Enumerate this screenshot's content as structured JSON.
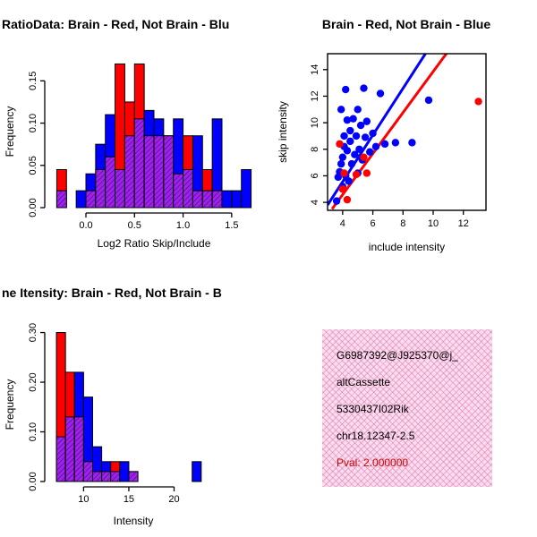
{
  "colors": {
    "red": "#FF0000",
    "blue": "#0000FF",
    "overlap": "#A020F0",
    "info_bg": "#FBDCEC",
    "pval": "#CC0000"
  },
  "info_box": {
    "lines": [
      "G6987392@J925370@j_",
      "altCassette",
      "5330437I02Rik",
      "chr18.12347-2.5"
    ],
    "pval_line": "Pval: 2.000000"
  },
  "chart_data": [
    {
      "id": "hist-ratio",
      "type": "histogram",
      "title": "RatioData: Brain - Red, Not Brain - Blu",
      "xlabel": "Log2 Ratio Skip/Include",
      "ylabel": "Frequency",
      "xlim": [
        -0.35,
        1.75
      ],
      "ylim": [
        0,
        0.18
      ],
      "xticks": [
        0,
        0.5,
        1.0,
        1.5
      ],
      "xtick_labels": [
        "0.0",
        "0.5",
        "1.0",
        "1.5"
      ],
      "yticks": [
        0,
        0.05,
        0.1,
        0.15
      ],
      "ytick_labels": [
        "0.00",
        "0.05",
        "0.10",
        "0.15"
      ],
      "bin_start": -0.3,
      "bin_width": 0.1,
      "series": [
        {
          "name": "Brain",
          "color": "#FF0000",
          "values": [
            0.045,
            0,
            0,
            0.02,
            0.045,
            0.06,
            0.17,
            0.125,
            0.17,
            0.085,
            0.085,
            0.085,
            0.04,
            0.085,
            0.02,
            0.045,
            0.02,
            0,
            0,
            0
          ]
        },
        {
          "name": "Not Brain",
          "color": "#0000FF",
          "values": [
            0.02,
            0,
            0.02,
            0.04,
            0.075,
            0.11,
            0.045,
            0.085,
            0.105,
            0.115,
            0.105,
            0.085,
            0.105,
            0.045,
            0.085,
            0.02,
            0.105,
            0.02,
            0.02,
            0.045
          ]
        }
      ]
    },
    {
      "id": "scatter-intensity",
      "type": "scatter",
      "title": "Brain - Red, Not Brain - Blue",
      "xlabel": "include intensity",
      "ylabel": "skip intensity",
      "xlim": [
        3,
        13.5
      ],
      "ylim": [
        3.4,
        15.2
      ],
      "xticks": [
        4,
        6,
        8,
        10,
        12
      ],
      "yticks": [
        4,
        6,
        8,
        10,
        12,
        14
      ],
      "series": [
        {
          "name": "Not Brain",
          "color": "#0000FF",
          "points": [
            [
              3.6,
              4.1
            ],
            [
              3.7,
              5.9
            ],
            [
              3.8,
              6.3
            ],
            [
              3.9,
              6.9
            ],
            [
              3.9,
              11.0
            ],
            [
              4.0,
              5.2
            ],
            [
              4.0,
              7.4
            ],
            [
              4.1,
              8.2
            ],
            [
              4.1,
              9.0
            ],
            [
              4.2,
              6.0
            ],
            [
              4.2,
              12.5
            ],
            [
              4.3,
              7.9
            ],
            [
              4.3,
              10.2
            ],
            [
              4.4,
              5.6
            ],
            [
              4.5,
              8.6
            ],
            [
              4.5,
              9.4
            ],
            [
              4.6,
              6.9
            ],
            [
              4.7,
              10.3
            ],
            [
              4.8,
              7.6
            ],
            [
              4.9,
              9.0
            ],
            [
              5.0,
              6.2
            ],
            [
              5.0,
              11.0
            ],
            [
              5.1,
              8.0
            ],
            [
              5.2,
              9.8
            ],
            [
              5.3,
              7.2
            ],
            [
              5.4,
              12.6
            ],
            [
              5.5,
              8.9
            ],
            [
              5.6,
              10.1
            ],
            [
              5.8,
              7.8
            ],
            [
              6.0,
              9.2
            ],
            [
              6.2,
              8.2
            ],
            [
              6.5,
              12.2
            ],
            [
              6.8,
              8.4
            ],
            [
              7.5,
              8.5
            ],
            [
              8.6,
              8.5
            ],
            [
              9.7,
              11.7
            ]
          ]
        },
        {
          "name": "Brain",
          "color": "#FF0000",
          "points": [
            [
              3.8,
              8.4
            ],
            [
              4.0,
              5.0
            ],
            [
              4.1,
              6.2
            ],
            [
              4.3,
              4.2
            ],
            [
              4.9,
              6.1
            ],
            [
              5.4,
              7.4
            ],
            [
              5.6,
              6.2
            ],
            [
              13.0,
              11.6
            ]
          ]
        }
      ],
      "fit_lines": [
        {
          "color": "#0000FF",
          "p1": [
            3.0,
            3.8
          ],
          "p2": [
            9.6,
            15.4
          ]
        },
        {
          "color": "#FF0000",
          "p1": [
            3.3,
            3.5
          ],
          "p2": [
            11.0,
            15.4
          ]
        }
      ]
    },
    {
      "id": "hist-intensity",
      "type": "histogram",
      "title": "ne Itensity: Brain - Red, Not Brain - B",
      "xlabel": "Intensity",
      "ylabel": "Frequency",
      "xlim": [
        6.5,
        24.5
      ],
      "ylim": [
        0,
        0.31
      ],
      "xticks": [
        10,
        15,
        20
      ],
      "xtick_labels": [
        "10",
        "15",
        "20"
      ],
      "yticks": [
        0,
        0.1,
        0.2,
        0.3
      ],
      "ytick_labels": [
        "0.00",
        "0.10",
        "0.20",
        "0.30"
      ],
      "bin_start": 7,
      "bin_width": 1,
      "series": [
        {
          "name": "Brain",
          "color": "#FF0000",
          "values": [
            0.3,
            0.22,
            0.13,
            0.04,
            0.02,
            0.02,
            0.04,
            0,
            0.02,
            0,
            0,
            0,
            0,
            0,
            0,
            0,
            0
          ]
        },
        {
          "name": "Not Brain",
          "color": "#0000FF",
          "values": [
            0.09,
            0.13,
            0.22,
            0.17,
            0.07,
            0.04,
            0.02,
            0.04,
            0.02,
            0,
            0,
            0,
            0,
            0,
            0,
            0.04,
            0
          ]
        }
      ]
    }
  ]
}
